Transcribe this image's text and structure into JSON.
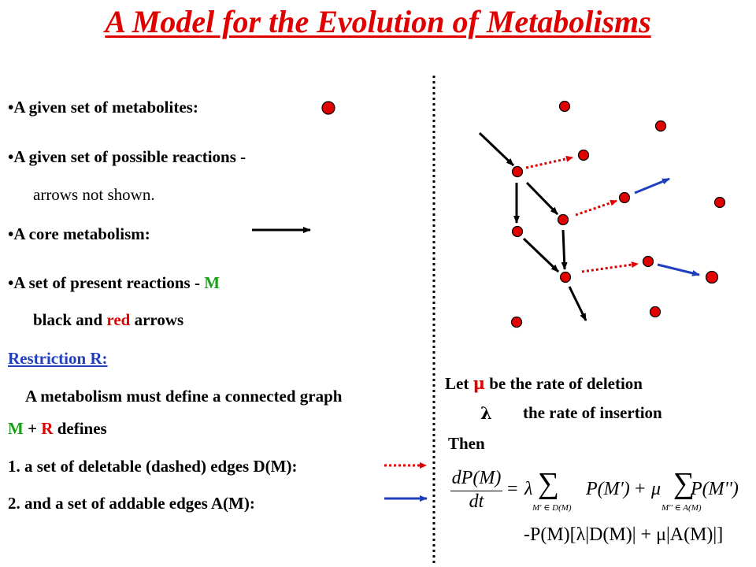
{
  "title": "A Model for the Evolution of Metabolisms",
  "left": {
    "item1": "•A given set of metabolites:",
    "item2": "•A given set of possible reactions -",
    "item2_sub": "arrows not shown.",
    "item3": "•A core metabolism:",
    "item4_prefix": "•A set of present reactions - ",
    "item4_M": "M",
    "item4_sub_prefix": "black and ",
    "item4_sub_red": "red",
    "item4_sub_suffix": " arrows",
    "restriction_label": "Restriction R:",
    "restriction_text": "A metabolism must define a connected graph",
    "defines_M": "M",
    "defines_plus": " + ",
    "defines_R": "R",
    "defines_suffix": " defines",
    "point1": "1. a set of deletable (dashed) edges D(M):",
    "point2": "2. and a set of addable edges A(M):"
  },
  "right": {
    "let_prefix": "Let ",
    "mu": "μ",
    "let_suffix": " be the rate of deletion",
    "lambda": "λ",
    "insertion": "the rate of insertion",
    "then": "Then"
  },
  "equation": {
    "lhs_num": "dP(M)",
    "lhs_den": "dt",
    "eq": "=",
    "lambda": "λ",
    "sum": "∑",
    "sum1_sub": "M' ∈ D(M)",
    "term1": "P(M')",
    "plus": "+",
    "mu": "μ",
    "sum2_sub": "M'' ∈ A(M)",
    "term2": "P(M'')",
    "line2": "-P(M)[λ|D(M)| + μ|A(M)|]"
  },
  "colors": {
    "title": "#e00000",
    "node": "#e00000",
    "dashed_edge": "#e00000",
    "addable_edge": "#1f3fbf",
    "present_M": "#1aa01a",
    "restriction": "#1f3fbf"
  }
}
